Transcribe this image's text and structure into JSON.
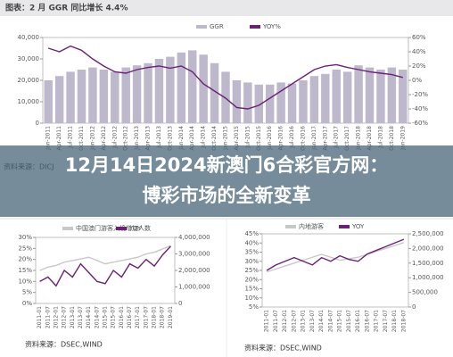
{
  "chart_data": [
    {
      "type": "bar",
      "title": "图表：2 月 GGR 同比增长 4.4%",
      "categories": [
        "Jan-2011",
        "Apr-2011",
        "Jul-2011",
        "Oct-2011",
        "Jan-2012",
        "Apr-2012",
        "Jul-2012",
        "Oct-2012",
        "Jan-2013",
        "Apr-2013",
        "Jul-2013",
        "Oct-2013",
        "Jan-2014",
        "Apr-2014",
        "Jul-2014",
        "Oct-2014",
        "Jan-2015",
        "Apr-2015",
        "Jul-2015",
        "Oct-2015",
        "Jan-2016",
        "Apr-2016",
        "Jul-2016",
        "Oct-2016",
        "Jan-2017",
        "Apr-2017",
        "Jul-2017",
        "Oct-2017",
        "Jan-2018",
        "Apr-2018",
        "Jul-2018",
        "Oct-2018",
        "Jan-2019"
      ],
      "series": [
        {
          "name": "GGR",
          "color": "#bdb8cc",
          "values": [
            20000,
            22000,
            24000,
            25000,
            26000,
            25000,
            24000,
            26000,
            27000,
            28000,
            30000,
            31000,
            33000,
            34000,
            32000,
            28000,
            24000,
            20000,
            19000,
            18000,
            18000,
            19000,
            18500,
            20000,
            22000,
            23000,
            25000,
            24000,
            27000,
            26000,
            25000,
            26000,
            25000
          ]
        },
        {
          "name": "YOY%",
          "color": "#6d2077",
          "axis": "y2",
          "values": [
            45,
            40,
            48,
            42,
            30,
            20,
            12,
            10,
            15,
            18,
            20,
            17,
            20,
            12,
            -5,
            -15,
            -25,
            -38,
            -40,
            -35,
            -25,
            -15,
            -5,
            5,
            15,
            20,
            22,
            18,
            15,
            12,
            10,
            8,
            4
          ]
        }
      ],
      "ylim": [
        0,
        40000
      ],
      "yticks": [
        0,
        {
          "value": 10000,
          "label": "10,000"
        },
        {
          "value": 20000,
          "label": "20,000"
        },
        {
          "value": 30000,
          "label": "30,000"
        },
        {
          "value": 40000,
          "label": "40,000"
        }
      ],
      "y2lim": [
        -60,
        60
      ],
      "y2ticks": [
        {
          "value": -60,
          "label": "-60%"
        },
        {
          "value": -40,
          "label": "-40%"
        },
        {
          "value": -20,
          "label": "-20%"
        },
        {
          "value": 0,
          "label": "0%"
        },
        {
          "value": 20,
          "label": "20%"
        },
        {
          "value": 40,
          "label": "40%"
        },
        {
          "value": 60,
          "label": "60%"
        }
      ],
      "source": "资料来源：DICJ",
      "grid": false
    },
    {
      "type": "line",
      "categories": [
        "2011-01",
        "2011-07",
        "2012-01",
        "2012-07",
        "2013-01",
        "2013-07",
        "2014-01",
        "2014-07",
        "2015-01",
        "2015-07",
        "2016-01",
        "2016-07",
        "2017-01",
        "2017-07",
        "2018-01",
        "2018-07",
        "2019-01"
      ],
      "series": [
        {
          "name": "中国澳门游客入境增加人数",
          "color": "#c8c8c8",
          "axis": "y2",
          "values": [
            2000000,
            2200000,
            2300000,
            2500000,
            2600000,
            2700000,
            2800000,
            2600000,
            2400000,
            2500000,
            2600000,
            2700000,
            2800000,
            3000000,
            3100000,
            3300000,
            3500000
          ]
        },
        {
          "name": "YOY",
          "color": "#6d2077",
          "values": [
            10,
            12,
            8,
            15,
            12,
            18,
            14,
            10,
            9,
            15,
            12,
            18,
            16,
            20,
            17,
            22,
            26
          ]
        }
      ],
      "ylim": [
        0,
        30
      ],
      "yticks": [
        {
          "value": 0,
          "label": "0%"
        },
        {
          "value": 5,
          "label": "5%"
        },
        {
          "value": 10,
          "label": "10%"
        },
        {
          "value": 15,
          "label": "15%"
        },
        {
          "value": 20,
          "label": "20%"
        },
        {
          "value": 25,
          "label": "25%"
        },
        {
          "value": 30,
          "label": "30%"
        }
      ],
      "y2lim": [
        0,
        4000000
      ],
      "y2ticks": [
        0,
        {
          "value": 1000000,
          "label": "1,000,000"
        },
        {
          "value": 2000000,
          "label": "2,000,000"
        },
        {
          "value": 3000000,
          "label": "3,000,000"
        },
        {
          "value": 4000000,
          "label": "4,000,000"
        }
      ],
      "source": "资料来源：DSEC,WIND",
      "grid": false
    },
    {
      "type": "line",
      "categories": [
        "2011-01",
        "2011-07",
        "2012-01",
        "2012-07",
        "2013-01",
        "2013-07",
        "2014-01",
        "2014-07",
        "2015-01",
        "2015-07",
        "2016-01",
        "2016-07",
        "2017-01",
        "2017-07",
        "2018-01",
        "2018-07"
      ],
      "series": [
        {
          "name": "内地游客",
          "color": "#c8c8c8",
          "axis": "y2",
          "values": [
            1200000,
            1300000,
            1400000,
            1500000,
            1600000,
            1700000,
            1800000,
            1700000,
            1600000,
            1650000,
            1700000,
            1800000,
            1900000,
            2000000,
            2100000,
            2200000
          ]
        },
        {
          "name": "YOY",
          "color": "#6d2077",
          "values": [
            25,
            28,
            30,
            32,
            30,
            28,
            32,
            30,
            33,
            31,
            30,
            34,
            36,
            38,
            40,
            42
          ]
        }
      ],
      "ylim": [
        5,
        45
      ],
      "yticks": [
        {
          "value": 5,
          "label": "5%"
        },
        {
          "value": 10,
          "label": "10%"
        },
        {
          "value": 15,
          "label": "15%"
        },
        {
          "value": 20,
          "label": "20%"
        },
        {
          "value": 25,
          "label": "25%"
        },
        {
          "value": 30,
          "label": "30%"
        },
        {
          "value": 35,
          "label": "35%"
        },
        {
          "value": 40,
          "label": "40%"
        },
        {
          "value": 45,
          "label": "45%"
        }
      ],
      "y2lim": [
        0,
        2500000
      ],
      "y2ticks": [
        0,
        {
          "value": 500000,
          "label": "500,000"
        },
        {
          "value": 1000000,
          "label": "1,000,000"
        },
        {
          "value": 1500000,
          "label": "1,500,000"
        },
        {
          "value": 2000000,
          "label": "2,000,000"
        },
        {
          "value": 2500000,
          "label": "2,500,000"
        }
      ],
      "source": "资料来源：DSEC,WIND",
      "grid": false
    }
  ],
  "overlay": {
    "title_lines": [
      "12月14日2024新澳门6合彩官方网：",
      "博彩市场的全新变革"
    ]
  }
}
